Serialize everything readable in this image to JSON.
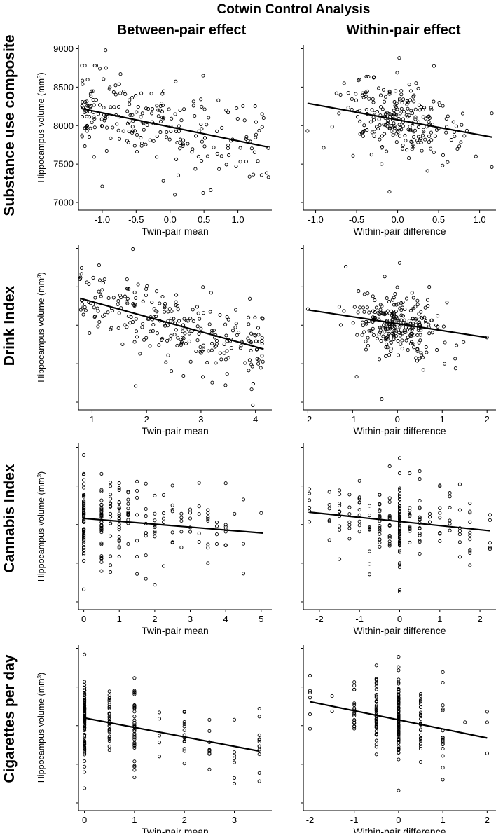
{
  "figure": {
    "title": "Cotwin Control Analysis",
    "columns": [
      "Between-pair effect",
      "Within-pair effect"
    ],
    "rows": [
      "Substance use composite",
      "Drink Index",
      "Cannabis Index",
      "Cigarettes per day"
    ]
  },
  "chart_data": [
    {
      "type": "scatter",
      "row": 0,
      "col": 0,
      "xlabel": "Twin-pair mean",
      "ylabel_main": "Hippocampus volume (mm",
      "ylabel_sup": "3",
      "ylabel_end": ")",
      "xlim": [
        -1.35,
        1.5
      ],
      "ylim": [
        6900,
        9050
      ],
      "xticks": [
        -1.0,
        -0.5,
        0.0,
        0.5,
        1.0
      ],
      "xtick_labels": [
        "-1.0",
        "-0.5",
        "0.0",
        "0.5",
        "1.0"
      ],
      "yticks": [
        7000,
        7500,
        8000,
        8500,
        9000
      ],
      "ytick_labels": [
        "7000",
        "7500",
        "8000",
        "8500",
        "9000"
      ],
      "fit_line": {
        "x": [
          -1.3,
          1.45
        ],
        "y": [
          8220,
          7720
        ]
      },
      "points": {
        "seed": 11,
        "n": 240,
        "dist": "continuous",
        "x_range": [
          -1.3,
          1.45
        ],
        "x_skew": 1.5,
        "resid_sd": 260,
        "outliers": [
          [
            -0.95,
            8980
          ],
          [
            -1.0,
            7210
          ],
          [
            0.6,
            7160
          ],
          [
            -0.1,
            7280
          ],
          [
            1.45,
            7330
          ]
        ]
      }
    },
    {
      "type": "scatter",
      "row": 0,
      "col": 1,
      "xlabel": "Within-pair difference",
      "xlim": [
        -1.15,
        1.2
      ],
      "ylim": [
        6900,
        9050
      ],
      "xticks": [
        -1.0,
        -0.5,
        0.0,
        0.5,
        1.0
      ],
      "xtick_labels": [
        "-1.0",
        "-0.5",
        "0.0",
        "0.5",
        "1.0"
      ],
      "yticks": [
        7000,
        7500,
        8000,
        8500,
        9000
      ],
      "fit_line": {
        "x": [
          -1.1,
          1.15
        ],
        "y": [
          8290,
          7850
        ]
      },
      "points": {
        "seed": 23,
        "n": 240,
        "dist": "centered",
        "x_sd": 0.35,
        "x_range": [
          -1.1,
          1.15
        ],
        "resid_sd": 240,
        "outliers": [
          [
            0.02,
            8880
          ],
          [
            -0.1,
            7140
          ],
          [
            1.15,
            8160
          ],
          [
            -1.1,
            7930
          ]
        ]
      }
    },
    {
      "type": "scatter",
      "row": 1,
      "col": 0,
      "xlabel": "Twin-pair mean",
      "xlim": [
        0.75,
        4.3
      ],
      "ylim": [
        6900,
        9050
      ],
      "xticks": [
        1,
        2,
        3,
        4
      ],
      "xtick_labels": [
        "1",
        "2",
        "3",
        "4"
      ],
      "yticks": [
        7000,
        7500,
        8000,
        8500,
        9000
      ],
      "fit_line": {
        "x": [
          0.78,
          4.15
        ],
        "y": [
          8350,
          7690
        ]
      },
      "points": {
        "seed": 37,
        "n": 260,
        "dist": "continuous",
        "x_range": [
          0.78,
          4.15
        ],
        "x_skew": 1.0,
        "resid_sd": 230,
        "outliers": [
          [
            1.75,
            8990
          ],
          [
            1.8,
            7210
          ],
          [
            3.45,
            7220
          ],
          [
            3.95,
            6960
          ],
          [
            0.78,
            8600
          ]
        ]
      }
    },
    {
      "type": "scatter",
      "row": 1,
      "col": 1,
      "xlabel": "Within-pair difference",
      "xlim": [
        -2.1,
        2.2
      ],
      "ylim": [
        6900,
        9050
      ],
      "xticks": [
        -2,
        -1,
        0,
        1,
        2
      ],
      "xtick_labels": [
        "-2",
        "-1",
        "0",
        "1",
        "2"
      ],
      "yticks": [
        7000,
        7500,
        8000,
        8500,
        9000
      ],
      "fit_line": {
        "x": [
          -2.0,
          2.0
        ],
        "y": [
          8200,
          7840
        ]
      },
      "points": {
        "seed": 41,
        "n": 260,
        "dist": "centered",
        "x_sd": 0.45,
        "x_range": [
          -2.0,
          2.0
        ],
        "resid_sd": 230,
        "outliers": [
          [
            -2.0,
            8210
          ],
          [
            2.0,
            7840
          ],
          [
            0.05,
            8810
          ],
          [
            -0.35,
            7040
          ],
          [
            1.3,
            7440
          ]
        ]
      }
    },
    {
      "type": "scatter",
      "row": 2,
      "col": 0,
      "xlabel": "Twin-pair mean",
      "xlim": [
        -0.15,
        5.3
      ],
      "ylim": [
        6900,
        9050
      ],
      "xticks": [
        0,
        1,
        2,
        3,
        4,
        5
      ],
      "xtick_labels": [
        "0",
        "1",
        "2",
        "3",
        "4",
        "5"
      ],
      "yticks": [
        7000,
        7500,
        8000,
        8500,
        9000
      ],
      "fit_line": {
        "x": [
          0.0,
          5.05
        ],
        "y": [
          8080,
          7890
        ]
      },
      "points": {
        "seed": 53,
        "n": 230,
        "dist": "discrete",
        "levels": [
          0,
          0.5,
          0.75,
          1,
          1.25,
          1.5,
          1.75,
          2,
          2.25,
          2.5,
          2.75,
          3,
          3.25,
          3.5,
          3.75,
          4,
          4.25,
          4.5,
          5
        ],
        "weights": [
          60,
          28,
          12,
          18,
          10,
          10,
          8,
          10,
          6,
          8,
          4,
          6,
          6,
          8,
          4,
          6,
          3,
          3,
          5
        ],
        "resid_sd": 250,
        "outliers": [
          [
            0,
            8900
          ],
          [
            0,
            7160
          ],
          [
            1.5,
            7360
          ],
          [
            2,
            7220
          ]
        ]
      }
    },
    {
      "type": "scatter",
      "row": 2,
      "col": 1,
      "xlabel": "Within-pair difference",
      "xlim": [
        -2.4,
        2.4
      ],
      "ylim": [
        6900,
        9050
      ],
      "xticks": [
        -2,
        -1,
        0,
        1,
        2
      ],
      "xtick_labels": [
        "-2",
        "-1",
        "0",
        "1",
        "2"
      ],
      "yticks": [
        7000,
        7500,
        8000,
        8500,
        9000
      ],
      "fit_line": {
        "x": [
          -2.25,
          2.25
        ],
        "y": [
          8160,
          7920
        ]
      },
      "points": {
        "seed": 67,
        "n": 230,
        "dist": "discrete",
        "levels": [
          -2.25,
          -1.75,
          -1.5,
          -1.25,
          -1,
          -0.75,
          -0.5,
          -0.25,
          0,
          0.25,
          0.5,
          0.75,
          1,
          1.25,
          1.5,
          1.75,
          2.25
        ],
        "weights": [
          2,
          4,
          6,
          6,
          8,
          10,
          14,
          12,
          70,
          12,
          14,
          10,
          8,
          6,
          6,
          4,
          2
        ],
        "resid_sd": 250,
        "outliers": [
          [
            0,
            8860
          ],
          [
            0,
            7130
          ],
          [
            2.25,
            7700
          ],
          [
            -2.25,
            8220
          ]
        ]
      }
    },
    {
      "type": "scatter",
      "row": 3,
      "col": 0,
      "xlabel": "Twin-pair mean",
      "xlim": [
        -0.12,
        3.75
      ],
      "ylim": [
        6900,
        9050
      ],
      "xticks": [
        0,
        1,
        2,
        3
      ],
      "xtick_labels": [
        "0",
        "1",
        "2",
        "3"
      ],
      "yticks": [
        7000,
        7500,
        8000,
        8500,
        9000
      ],
      "fit_line": {
        "x": [
          0.0,
          3.5
        ],
        "y": [
          8100,
          7670
        ]
      },
      "points": {
        "seed": 79,
        "n": 230,
        "dist": "discrete",
        "levels": [
          0,
          0.5,
          1,
          1.5,
          2,
          2.5,
          3,
          3.5
        ],
        "weights": [
          80,
          30,
          40,
          4,
          8,
          10,
          6,
          5
        ],
        "resid_sd": 250,
        "outliers": [
          [
            0,
            8920
          ],
          [
            0,
            7190
          ],
          [
            1,
            7330
          ],
          [
            3.5,
            7280
          ],
          [
            3.5,
            8220
          ]
        ]
      }
    },
    {
      "type": "scatter",
      "row": 3,
      "col": 1,
      "xlabel": "Within-pair difference",
      "xlim": [
        -2.15,
        2.2
      ],
      "ylim": [
        6900,
        9050
      ],
      "xticks": [
        -2,
        -1,
        0,
        1,
        2
      ],
      "xtick_labels": [
        "-2",
        "-1",
        "0",
        "1",
        "2"
      ],
      "yticks": [
        7000,
        7500,
        8000,
        8500,
        9000
      ],
      "fit_line": {
        "x": [
          -2.0,
          2.0
        ],
        "y": [
          8310,
          7840
        ]
      },
      "points": {
        "seed": 97,
        "n": 220,
        "dist": "discrete",
        "levels": [
          -2,
          -1.5,
          -1,
          -0.5,
          0,
          0.5,
          1,
          1.5,
          2
        ],
        "weights": [
          2,
          2,
          20,
          35,
          100,
          30,
          15,
          2,
          2
        ],
        "resid_sd": 250,
        "outliers": [
          [
            0,
            8890
          ],
          [
            0,
            7160
          ],
          [
            1,
            7300
          ],
          [
            -2,
            8450
          ],
          [
            2,
            8180
          ],
          [
            2,
            7640
          ]
        ]
      }
    }
  ]
}
